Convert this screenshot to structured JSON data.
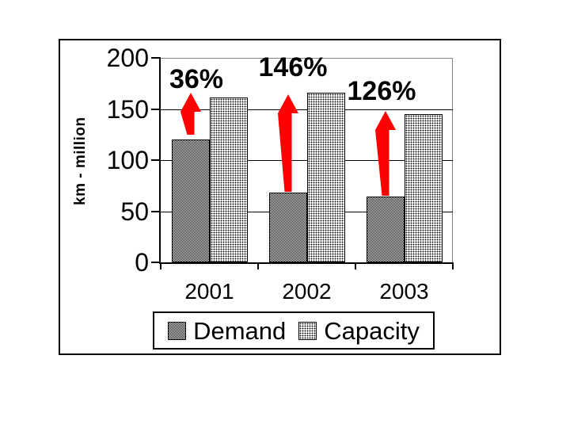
{
  "chart_data": {
    "type": "bar",
    "title": "",
    "ylabel": "km - million",
    "xlabel": "",
    "categories": [
      "2001",
      "2002",
      "2003"
    ],
    "series": [
      {
        "name": "Demand",
        "pattern": "crosshatch",
        "values": [
          120,
          68,
          64
        ]
      },
      {
        "name": "Capacity",
        "pattern": "dots",
        "values": [
          161,
          166,
          145
        ]
      }
    ],
    "annotations": [
      {
        "category": "2001",
        "label": "36%"
      },
      {
        "category": "2002",
        "label": "146%"
      },
      {
        "category": "2003",
        "label": "126%"
      }
    ],
    "yticks": [
      0,
      50,
      100,
      150,
      200
    ],
    "ylim": [
      0,
      200
    ],
    "grid": true,
    "legend_position": "bottom",
    "colors": {
      "arrow": "#ff0000",
      "axis": "#000000",
      "plot_frame": "#808080",
      "bar_fill_base": "#ffffff",
      "pattern_ink": "#000000"
    }
  }
}
